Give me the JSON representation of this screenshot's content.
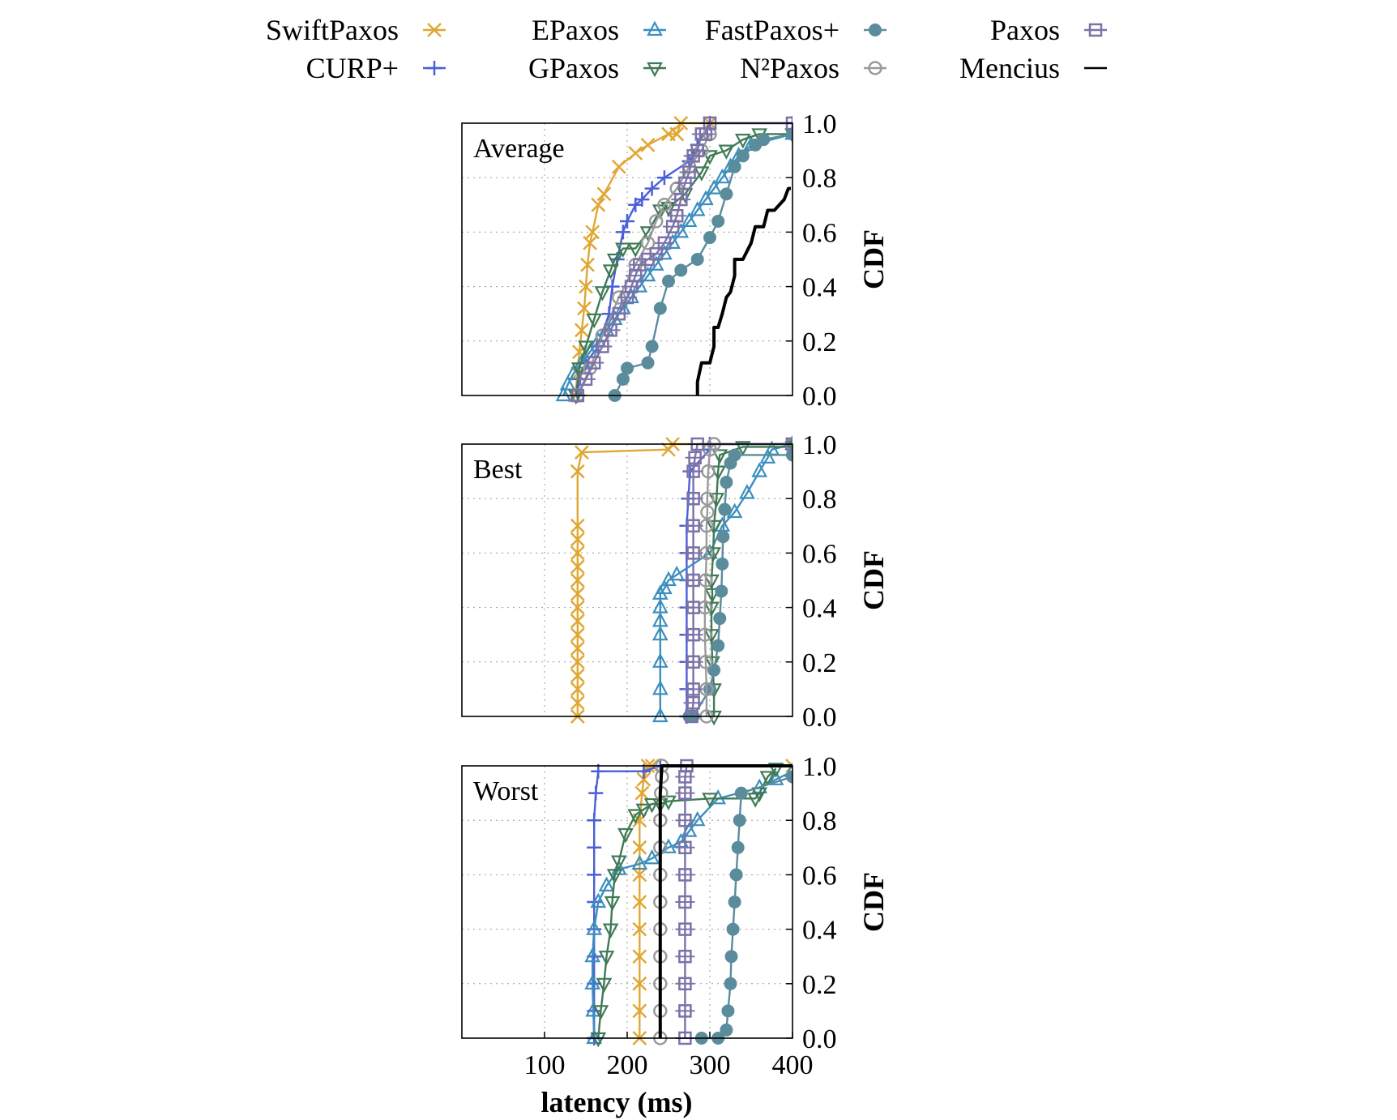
{
  "colors": {
    "SwiftPaxos": "#e0a733",
    "CURP+": "#4b5fd8",
    "EPaxos": "#3b8fbf",
    "GPaxos": "#3f7a55",
    "FastPaxos+": "#5b8c9c",
    "N2Paxos": "#9a9a9a",
    "Paxos": "#7b72a8",
    "Mencius": "#000000"
  },
  "legend": [
    {
      "key": "SwiftPaxos",
      "label": "SwiftPaxos",
      "marker": "x"
    },
    {
      "key": "CURP+",
      "label": "CURP+",
      "marker": "plus"
    },
    {
      "key": "EPaxos",
      "label": "EPaxos",
      "marker": "triangle-up"
    },
    {
      "key": "GPaxos",
      "label": "GPaxos",
      "marker": "triangle-down"
    },
    {
      "key": "FastPaxos+",
      "label": "FastPaxos+",
      "marker": "filled-circle"
    },
    {
      "key": "N2Paxos",
      "label": "N²Paxos",
      "marker": "open-circle"
    },
    {
      "key": "Paxos",
      "label": "Paxos",
      "marker": "open-square"
    },
    {
      "key": "Mencius",
      "label": "Mencius",
      "marker": "line"
    }
  ],
  "chart_data": [
    {
      "type": "line",
      "panel": "Average",
      "xlabel": "",
      "ylabel": "CDF",
      "xlim": [
        0,
        400
      ],
      "ylim": [
        0,
        1.0
      ],
      "xticks": [],
      "yticks": [
        "0.0",
        "0.2",
        "0.4",
        "0.6",
        "0.8",
        "1.0"
      ],
      "grid": true,
      "series": [
        {
          "name": "SwiftPaxos",
          "x": [
            137,
            140,
            142,
            145,
            148,
            150,
            152,
            155,
            158,
            165,
            172,
            190,
            210,
            225,
            250,
            260,
            265,
            300
          ],
          "y": [
            0,
            0.08,
            0.16,
            0.24,
            0.32,
            0.4,
            0.48,
            0.56,
            0.6,
            0.7,
            0.74,
            0.84,
            0.89,
            0.92,
            0.96,
            0.96,
            1.0,
            1.0
          ]
        },
        {
          "name": "CURP+",
          "x": [
            140,
            142,
            150,
            165,
            178,
            182,
            188,
            195,
            200,
            210,
            218,
            230,
            245,
            275,
            280,
            285,
            300,
            400
          ],
          "y": [
            0,
            0.06,
            0.12,
            0.18,
            0.3,
            0.4,
            0.5,
            0.6,
            0.64,
            0.7,
            0.72,
            0.76,
            0.8,
            0.86,
            0.88,
            0.92,
            1.0,
            1.0
          ]
        },
        {
          "name": "EPaxos",
          "x": [
            123,
            128,
            135,
            145,
            155,
            165,
            175,
            185,
            195,
            205,
            215,
            225,
            235,
            245,
            255,
            265,
            275,
            285,
            295,
            305,
            315,
            325,
            335,
            350,
            400
          ],
          "y": [
            0,
            0.04,
            0.08,
            0.12,
            0.16,
            0.2,
            0.24,
            0.28,
            0.32,
            0.36,
            0.4,
            0.44,
            0.48,
            0.52,
            0.56,
            0.6,
            0.64,
            0.68,
            0.72,
            0.76,
            0.8,
            0.84,
            0.88,
            0.92,
            0.96
          ]
        },
        {
          "name": "GPaxos",
          "x": [
            138,
            142,
            150,
            160,
            170,
            180,
            185,
            195,
            210,
            225,
            240,
            250,
            270,
            290,
            300,
            320,
            340,
            360,
            400
          ],
          "y": [
            0,
            0.1,
            0.18,
            0.28,
            0.38,
            0.46,
            0.5,
            0.54,
            0.54,
            0.6,
            0.68,
            0.69,
            0.74,
            0.82,
            0.88,
            0.9,
            0.94,
            0.96,
            0.96
          ]
        },
        {
          "name": "FastPaxos+",
          "x": [
            185,
            195,
            200,
            225,
            230,
            240,
            250,
            265,
            285,
            300,
            310,
            320,
            330,
            340,
            355,
            365,
            400
          ],
          "y": [
            0,
            0.06,
            0.1,
            0.12,
            0.18,
            0.32,
            0.42,
            0.46,
            0.5,
            0.58,
            0.64,
            0.74,
            0.84,
            0.88,
            0.92,
            0.94,
            0.96
          ]
        },
        {
          "name": "N2Paxos",
          "x": [
            140,
            155,
            170,
            190,
            210,
            225,
            235,
            245,
            260,
            275,
            290,
            300
          ],
          "y": [
            0,
            0.1,
            0.22,
            0.36,
            0.48,
            0.56,
            0.64,
            0.7,
            0.76,
            0.84,
            0.9,
            0.96
          ]
        },
        {
          "name": "Paxos",
          "x": [
            140,
            150,
            160,
            170,
            180,
            190,
            200,
            205,
            210,
            215,
            225,
            235,
            245,
            255,
            260,
            265,
            270,
            275,
            280,
            285,
            290,
            295,
            300,
            400
          ],
          "y": [
            0,
            0.06,
            0.12,
            0.18,
            0.24,
            0.3,
            0.36,
            0.4,
            0.44,
            0.48,
            0.5,
            0.52,
            0.56,
            0.62,
            0.66,
            0.72,
            0.78,
            0.82,
            0.88,
            0.9,
            0.96,
            0.96,
            1.0,
            1.0
          ]
        },
        {
          "name": "Mencius",
          "x": [
            285,
            285,
            290,
            300,
            305,
            305,
            310,
            315,
            320,
            325,
            330,
            330,
            340,
            350,
            355,
            365,
            370,
            378,
            390,
            395,
            398
          ],
          "y": [
            0,
            0.05,
            0.12,
            0.12,
            0.18,
            0.25,
            0.25,
            0.3,
            0.36,
            0.38,
            0.44,
            0.5,
            0.5,
            0.56,
            0.62,
            0.62,
            0.68,
            0.68,
            0.72,
            0.76,
            0.76
          ]
        }
      ]
    },
    {
      "type": "line",
      "panel": "Best",
      "xlabel": "",
      "ylabel": "CDF",
      "xlim": [
        0,
        400
      ],
      "ylim": [
        0,
        1.0
      ],
      "xticks": [],
      "yticks": [
        "0.0",
        "0.2",
        "0.4",
        "0.6",
        "0.8",
        "1.0"
      ],
      "grid": true,
      "series": [
        {
          "name": "SwiftPaxos",
          "x": [
            140,
            140,
            140,
            140,
            140,
            140,
            140,
            140,
            140,
            140,
            140,
            140,
            140,
            140,
            140,
            140,
            145,
            250,
            255,
            400
          ],
          "y": [
            0,
            0.05,
            0.1,
            0.15,
            0.2,
            0.25,
            0.3,
            0.35,
            0.4,
            0.45,
            0.5,
            0.55,
            0.6,
            0.65,
            0.7,
            0.9,
            0.97,
            0.98,
            1.0,
            1.0
          ]
        },
        {
          "name": "CURP+",
          "x": [
            272,
            272,
            272,
            272,
            272,
            272,
            272,
            272,
            274,
            276,
            300,
            300,
            400
          ],
          "y": [
            0,
            0.1,
            0.2,
            0.3,
            0.4,
            0.5,
            0.6,
            0.7,
            0.8,
            0.9,
            0.98,
            1.0,
            1.0
          ]
        },
        {
          "name": "EPaxos",
          "x": [
            240,
            240,
            240,
            240,
            240,
            240,
            240,
            245,
            250,
            260,
            300,
            315,
            330,
            345,
            360,
            370,
            375,
            400
          ],
          "y": [
            0,
            0.1,
            0.2,
            0.3,
            0.35,
            0.4,
            0.45,
            0.47,
            0.5,
            0.52,
            0.6,
            0.7,
            0.75,
            0.82,
            0.9,
            0.95,
            0.98,
            1.0
          ]
        },
        {
          "name": "GPaxos",
          "x": [
            305,
            305,
            303,
            302,
            302,
            303,
            302,
            304,
            305,
            308,
            310,
            312,
            340,
            400
          ],
          "y": [
            0,
            0.1,
            0.2,
            0.3,
            0.4,
            0.45,
            0.5,
            0.6,
            0.7,
            0.8,
            0.9,
            0.96,
            0.99,
            0.99
          ]
        },
        {
          "name": "FastPaxos+",
          "x": [
            275,
            280,
            300,
            305,
            310,
            312,
            314,
            315,
            316,
            318,
            320,
            325,
            330,
            400
          ],
          "y": [
            0,
            0.0,
            0.1,
            0.17,
            0.26,
            0.36,
            0.46,
            0.56,
            0.66,
            0.76,
            0.86,
            0.93,
            0.96,
            0.96
          ]
        },
        {
          "name": "N2Paxos",
          "x": [
            296,
            296,
            295,
            294,
            294,
            295,
            296,
            296,
            297,
            297,
            298,
            300,
            305,
            400
          ],
          "y": [
            0,
            0.1,
            0.2,
            0.3,
            0.4,
            0.5,
            0.6,
            0.7,
            0.75,
            0.8,
            0.9,
            0.98,
            1.0,
            1.0
          ]
        },
        {
          "name": "Paxos",
          "x": [
            278,
            280,
            280,
            280,
            280,
            280,
            280,
            280,
            280,
            280,
            280,
            282,
            285,
            400
          ],
          "y": [
            0,
            0.05,
            0.1,
            0.2,
            0.3,
            0.4,
            0.5,
            0.6,
            0.7,
            0.8,
            0.9,
            0.95,
            1.0,
            1.0
          ]
        }
      ]
    },
    {
      "type": "line",
      "panel": "Worst",
      "xlabel": "latency (ms)",
      "ylabel": "CDF",
      "xlim": [
        0,
        400
      ],
      "ylim": [
        0,
        1.0
      ],
      "xticks": [
        "100",
        "200",
        "300",
        "400"
      ],
      "yticks": [
        "0.0",
        "0.2",
        "0.4",
        "0.6",
        "0.8",
        "1.0"
      ],
      "grid": true,
      "series": [
        {
          "name": "SwiftPaxos",
          "x": [
            215,
            215,
            215,
            215,
            215,
            215,
            215,
            215,
            215,
            218,
            220,
            225,
            230,
            400
          ],
          "y": [
            0,
            0.1,
            0.2,
            0.3,
            0.4,
            0.5,
            0.6,
            0.7,
            0.8,
            0.9,
            0.95,
            1.0,
            1.0,
            1.0
          ]
        },
        {
          "name": "CURP+",
          "x": [
            160,
            160,
            160,
            160,
            160,
            160,
            160,
            160,
            160,
            162,
            165,
            220,
            240
          ],
          "y": [
            0,
            0.1,
            0.2,
            0.3,
            0.4,
            0.5,
            0.6,
            0.7,
            0.8,
            0.9,
            0.98,
            0.98,
            1.0
          ]
        },
        {
          "name": "EPaxos",
          "x": [
            160,
            159,
            158,
            158,
            160,
            165,
            175,
            190,
            215,
            230,
            250,
            265,
            275,
            285,
            310,
            360,
            380,
            400
          ],
          "y": [
            0,
            0.1,
            0.2,
            0.3,
            0.4,
            0.5,
            0.56,
            0.62,
            0.64,
            0.66,
            0.7,
            0.72,
            0.76,
            0.8,
            0.88,
            0.92,
            0.95,
            0.98
          ]
        },
        {
          "name": "GPaxos",
          "x": [
            165,
            168,
            172,
            175,
            180,
            182,
            185,
            190,
            198,
            210,
            220,
            230,
            240,
            250,
            300,
            355,
            360,
            370,
            380
          ],
          "y": [
            0,
            0.1,
            0.2,
            0.3,
            0.4,
            0.5,
            0.6,
            0.65,
            0.75,
            0.82,
            0.84,
            0.86,
            0.86,
            0.87,
            0.88,
            0.88,
            0.9,
            0.96,
            0.99
          ]
        },
        {
          "name": "FastPaxos+",
          "x": [
            290,
            310,
            320,
            322,
            325,
            326,
            328,
            330,
            332,
            334,
            336,
            338,
            400
          ],
          "y": [
            0,
            0.0,
            0.03,
            0.1,
            0.2,
            0.3,
            0.4,
            0.5,
            0.6,
            0.7,
            0.8,
            0.9,
            0.96
          ]
        },
        {
          "name": "N2Paxos",
          "x": [
            240,
            240,
            240,
            240,
            240,
            240,
            240,
            240,
            240,
            241,
            242,
            242
          ],
          "y": [
            0,
            0.1,
            0.2,
            0.3,
            0.4,
            0.5,
            0.6,
            0.7,
            0.8,
            0.9,
            0.96,
            1.0
          ]
        },
        {
          "name": "Paxos",
          "x": [
            270,
            270,
            270,
            270,
            270,
            270,
            270,
            270,
            270,
            270,
            270,
            272
          ],
          "y": [
            0,
            0.1,
            0.2,
            0.3,
            0.4,
            0.5,
            0.6,
            0.7,
            0.8,
            0.9,
            0.96,
            1.0
          ]
        },
        {
          "name": "Mencius",
          "x": [
            240,
            240,
            240,
            240,
            242,
            245,
            400
          ],
          "y": [
            0,
            0.3,
            0.6,
            0.9,
            1.0,
            1.0,
            1.0
          ]
        }
      ]
    }
  ]
}
